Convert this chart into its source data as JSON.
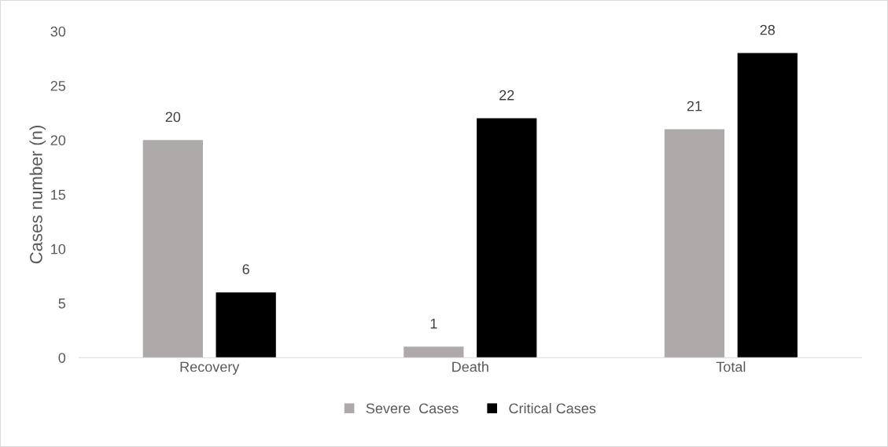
{
  "chart_data": {
    "type": "bar",
    "ylabel": "Cases number (n)",
    "categories": [
      "Recovery",
      "Death",
      "Total"
    ],
    "series": [
      {
        "name": "Severe  Cases",
        "color": "#aeaaaa",
        "values": [
          20,
          1,
          21
        ]
      },
      {
        "name": "Critical Cases",
        "color": "#000000",
        "values": [
          6,
          22,
          28
        ]
      }
    ],
    "ylim": [
      0,
      30
    ],
    "yticks": [
      0,
      5,
      10,
      15,
      20,
      25,
      30
    ],
    "data_labels": true,
    "legend": "bottom",
    "grid": false
  }
}
